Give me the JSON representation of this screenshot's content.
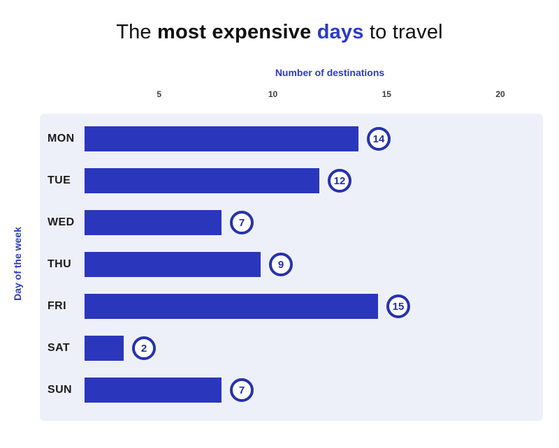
{
  "title": {
    "prefix": "The ",
    "bold": "most expensive ",
    "accent": "days",
    "suffix": " to travel"
  },
  "chart_data": {
    "type": "bar",
    "orientation": "horizontal",
    "title": "The most expensive days to travel",
    "title_accent_word": "days",
    "xlabel": "Number of destinations",
    "ylabel": "Day of the week",
    "categories": [
      "MON",
      "TUE",
      "WED",
      "THU",
      "FRI",
      "SAT",
      "SUN"
    ],
    "values": [
      14,
      12,
      7,
      9,
      15,
      2,
      7
    ],
    "xticks": [
      5,
      10,
      15,
      20
    ],
    "xlim": [
      0,
      22
    ],
    "grid": false,
    "legend": false,
    "value_labels": "circled badges at bar ends",
    "colors": {
      "accent": "#2b3ac5",
      "bar": "#2a37bd",
      "badge_ring": "#2632ae",
      "badge_text": "#222f9e",
      "panel_background": "#eef0f9",
      "page_background": "#ffffff",
      "tick_text": "#3b3b3b",
      "day_label_text": "#1b1b1b",
      "title_text": "#111111"
    }
  }
}
